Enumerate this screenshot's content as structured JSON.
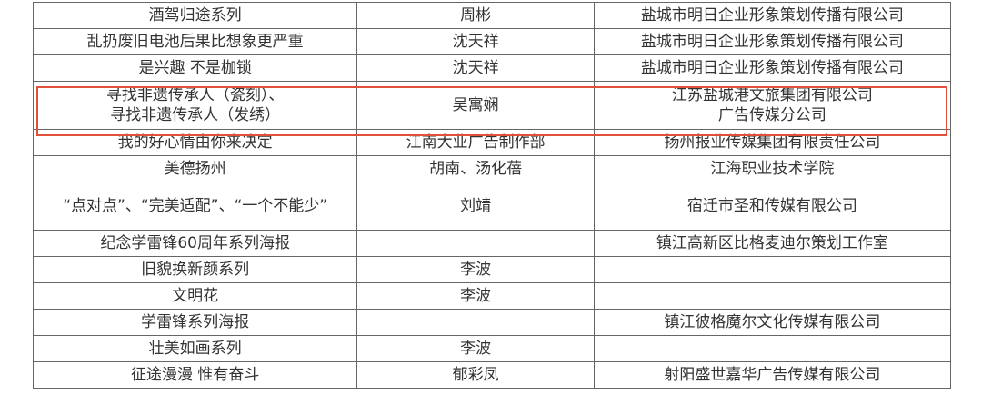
{
  "highlight_color": "#e0513a",
  "rows": [
    {
      "work": "酒驾归途系列",
      "author": "周彬",
      "org": "盐城市明日企业形象策划传播有限公司"
    },
    {
      "work": "乱扔废旧电池后果比想象更严重",
      "author": "沈天祥",
      "org": "盐城市明日企业形象策划传播有限公司"
    },
    {
      "work": "是兴趣 不是枷锁",
      "author": "沈天祥",
      "org": "盐城市明日企业形象策划传播有限公司"
    },
    {
      "work": "寻找非遗传承人（瓷刻）、\n寻找非遗传承人（发绣）",
      "author": "吴寓娴",
      "org": "江苏盐城港文旅集团有限公司\n广告传媒分公司"
    },
    {
      "work": "我的好心情由你来决定",
      "author": "江南大业广告制作部",
      "org": "扬州报业传媒集团有限责任公司"
    },
    {
      "work": "美德扬州",
      "author": "胡南、汤化蓓",
      "org": "江海职业技术学院"
    },
    {
      "work": "“点对点”、“完美适配”、“一个不能少”",
      "author": "刘靖",
      "org": "宿迁市圣和传媒有限公司"
    },
    {
      "work": "纪念学雷锋60周年系列海报",
      "author": "",
      "org": "镇江高新区比格麦迪尔策划工作室"
    },
    {
      "work": "旧貌换新颜系列",
      "author": "李波",
      "org": ""
    },
    {
      "work": "文明花",
      "author": "李波",
      "org": ""
    },
    {
      "work": "学雷锋系列海报",
      "author": "",
      "org": "镇江彼格魔尔文化传媒有限公司"
    },
    {
      "work": "壮美如画系列",
      "author": "李波",
      "org": ""
    },
    {
      "work": "征途漫漫 惟有奋斗",
      "author": "郁彩凤",
      "org": "射阳盛世嘉华广告传媒有限公司"
    }
  ]
}
